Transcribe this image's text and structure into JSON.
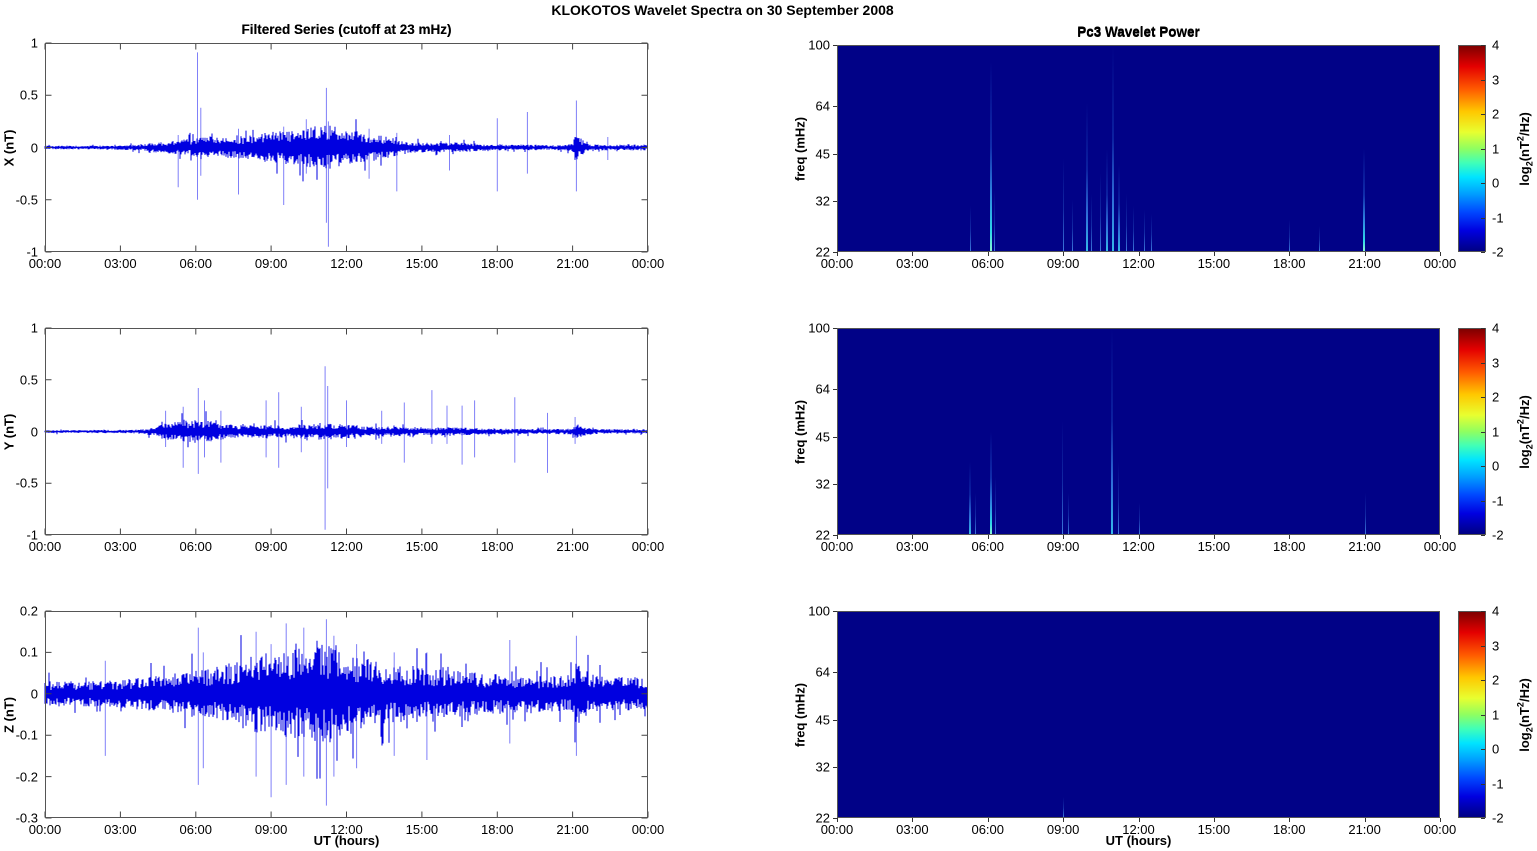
{
  "figure": {
    "title": "KLOKOTOS Wavelet Spectra on 30 September 2008",
    "background_color": "#FFFFFF"
  },
  "left_column": {
    "title": "Filtered Series (cutoff at 23 mHz)",
    "xlabel": "UT (hours)"
  },
  "right_column": {
    "title": "Pc3 Wavelet Power",
    "xlabel": "UT (hours)",
    "colorbar": {
      "ticks": [
        "4",
        "3",
        "2",
        "1",
        "0",
        "-1",
        "-2"
      ],
      "clim": [
        -2,
        4
      ],
      "label_prefix": "log",
      "label_sub": "2",
      "label_mid": "(nT",
      "label_sup": "2",
      "label_suffix": "/Hz)",
      "colormap": "jet",
      "jet_stops_top_to_bottom": [
        [
          0,
          "#7f0000"
        ],
        [
          0.1,
          "#e40000"
        ],
        [
          0.21,
          "#ff5a00"
        ],
        [
          0.32,
          "#ffc800"
        ],
        [
          0.42,
          "#e8ff30"
        ],
        [
          0.5,
          "#90ff60"
        ],
        [
          0.57,
          "#40ffb8"
        ],
        [
          0.64,
          "#00e4ff"
        ],
        [
          0.72,
          "#00a0ff"
        ],
        [
          0.81,
          "#0048ff"
        ],
        [
          0.9,
          "#0000e0"
        ],
        [
          1,
          "#000084"
        ]
      ]
    }
  },
  "colors": {
    "series_blue": "#0000E0",
    "spike_blue": "#8080F8",
    "heatmap_background": "#010287",
    "axis_line": "#555555"
  },
  "x_axis": {
    "tick_labels": [
      "00:00",
      "03:00",
      "06:00",
      "09:00",
      "12:00",
      "15:00",
      "18:00",
      "21:00",
      "00:00"
    ],
    "tick_hours": [
      0,
      3,
      6,
      9,
      12,
      15,
      18,
      21,
      24
    ],
    "range_hours": [
      0,
      24
    ]
  },
  "chart_data": [
    {
      "id": "ts-x",
      "type": "line",
      "component": "X",
      "title": "Filtered Series (cutoff at 23 mHz)",
      "ylabel": "X (nT)",
      "ylim": [
        -1,
        1
      ],
      "yticks": [
        "1",
        "0.5",
        "0",
        "-0.5",
        "-1"
      ],
      "x_unit": "UT hours",
      "grid": false,
      "envelope_hour_amp": [
        [
          0,
          0.018
        ],
        [
          2,
          0.018
        ],
        [
          3,
          0.022
        ],
        [
          4,
          0.035
        ],
        [
          4.5,
          0.05
        ],
        [
          5,
          0.06
        ],
        [
          5.5,
          0.075
        ],
        [
          6,
          0.09
        ],
        [
          6.5,
          0.1
        ],
        [
          7,
          0.095
        ],
        [
          7.5,
          0.1
        ],
        [
          8,
          0.115
        ],
        [
          8.5,
          0.13
        ],
        [
          9,
          0.15
        ],
        [
          9.5,
          0.16
        ],
        [
          10,
          0.175
        ],
        [
          10.5,
          0.19
        ],
        [
          11,
          0.21
        ],
        [
          11.3,
          0.22
        ],
        [
          11.7,
          0.19
        ],
        [
          12,
          0.18
        ],
        [
          12.5,
          0.16
        ],
        [
          13,
          0.13
        ],
        [
          13.5,
          0.11
        ],
        [
          14,
          0.08
        ],
        [
          14.5,
          0.055
        ],
        [
          15,
          0.05
        ],
        [
          15.5,
          0.042
        ],
        [
          16,
          0.05
        ],
        [
          16.5,
          0.048
        ],
        [
          17,
          0.04
        ],
        [
          17.5,
          0.032
        ],
        [
          18,
          0.03
        ],
        [
          18.5,
          0.028
        ],
        [
          19,
          0.028
        ],
        [
          19.5,
          0.026
        ],
        [
          20,
          0.024
        ],
        [
          20.5,
          0.026
        ],
        [
          21,
          0.035
        ],
        [
          21.1,
          0.13
        ],
        [
          21.3,
          0.1
        ],
        [
          21.5,
          0.045
        ],
        [
          22,
          0.03
        ],
        [
          22.5,
          0.028
        ],
        [
          23,
          0.028
        ],
        [
          24,
          0.028
        ]
      ],
      "spikes_hour_up_down": [
        [
          5.3,
          0.12,
          -0.38
        ],
        [
          6.07,
          0.91,
          -0.5
        ],
        [
          6.2,
          0.38,
          -0.27
        ],
        [
          7.7,
          0.18,
          -0.45
        ],
        [
          9.5,
          0.2,
          -0.55
        ],
        [
          10.4,
          0.27,
          -0.25
        ],
        [
          11.2,
          0.57,
          -0.72
        ],
        [
          11.28,
          0.25,
          -0.95
        ],
        [
          12.9,
          0.18,
          -0.3
        ],
        [
          14.0,
          0.14,
          -0.42
        ],
        [
          16.1,
          0.12,
          -0.22
        ],
        [
          18.0,
          0.28,
          -0.42
        ],
        [
          19.2,
          0.34,
          -0.25
        ],
        [
          21.15,
          0.45,
          -0.42
        ],
        [
          22.4,
          0.1,
          -0.12
        ]
      ]
    },
    {
      "id": "ts-y",
      "type": "line",
      "component": "Y",
      "ylabel": "Y (nT)",
      "ylim": [
        -1,
        1
      ],
      "yticks": [
        "1",
        "0.5",
        "0",
        "-0.5",
        "-1"
      ],
      "x_unit": "UT hours",
      "grid": false,
      "envelope_hour_amp": [
        [
          0,
          0.015
        ],
        [
          3,
          0.016
        ],
        [
          3.8,
          0.02
        ],
        [
          4.3,
          0.04
        ],
        [
          4.7,
          0.07
        ],
        [
          5,
          0.09
        ],
        [
          5.3,
          0.1
        ],
        [
          5.7,
          0.11
        ],
        [
          6,
          0.115
        ],
        [
          6.3,
          0.12
        ],
        [
          6.7,
          0.1
        ],
        [
          7,
          0.08
        ],
        [
          7.5,
          0.065
        ],
        [
          8,
          0.06
        ],
        [
          8.5,
          0.06
        ],
        [
          9,
          0.065
        ],
        [
          9.5,
          0.06
        ],
        [
          10,
          0.065
        ],
        [
          10.5,
          0.07
        ],
        [
          11,
          0.08
        ],
        [
          11.5,
          0.075
        ],
        [
          12,
          0.065
        ],
        [
          12.5,
          0.06
        ],
        [
          13,
          0.05
        ],
        [
          14,
          0.05
        ],
        [
          15,
          0.04
        ],
        [
          16,
          0.04
        ],
        [
          17,
          0.035
        ],
        [
          18,
          0.03
        ],
        [
          19,
          0.026
        ],
        [
          20,
          0.024
        ],
        [
          21,
          0.03
        ],
        [
          21.15,
          0.08
        ],
        [
          21.4,
          0.05
        ],
        [
          21.7,
          0.03
        ],
        [
          22,
          0.024
        ],
        [
          23,
          0.022
        ],
        [
          24,
          0.022
        ]
      ],
      "spikes_hour_up_down": [
        [
          4.8,
          0.2,
          -0.15
        ],
        [
          5.5,
          0.24,
          -0.35
        ],
        [
          6.1,
          0.42,
          -0.41
        ],
        [
          6.35,
          0.3,
          -0.25
        ],
        [
          7.0,
          0.2,
          -0.3
        ],
        [
          8.8,
          0.3,
          -0.25
        ],
        [
          9.3,
          0.38,
          -0.35
        ],
        [
          10.2,
          0.24,
          -0.2
        ],
        [
          11.15,
          0.63,
          -0.95
        ],
        [
          11.25,
          0.44,
          -0.55
        ],
        [
          12.0,
          0.3,
          -0.15
        ],
        [
          13.4,
          0.2,
          -0.12
        ],
        [
          14.3,
          0.28,
          -0.3
        ],
        [
          15.4,
          0.4,
          -0.12
        ],
        [
          16.0,
          0.25,
          -0.12
        ],
        [
          16.6,
          0.25,
          -0.32
        ],
        [
          17.1,
          0.3,
          -0.25
        ],
        [
          18.7,
          0.33,
          -0.3
        ],
        [
          20.0,
          0.18,
          -0.4
        ],
        [
          21.1,
          0.14,
          -0.12
        ]
      ]
    },
    {
      "id": "ts-z",
      "type": "line",
      "component": "Z",
      "ylabel": "Z (nT)",
      "ylim": [
        -0.3,
        0.2
      ],
      "yticks": [
        "0.2",
        "0.1",
        "0",
        "-0.1",
        "-0.2",
        "-0.3"
      ],
      "x_unit": "UT hours",
      "grid": false,
      "envelope_hour_amp": [
        [
          0,
          0.03
        ],
        [
          1,
          0.03
        ],
        [
          2,
          0.031
        ],
        [
          3,
          0.034
        ],
        [
          4,
          0.04
        ],
        [
          5,
          0.05
        ],
        [
          6,
          0.058
        ],
        [
          6.5,
          0.062
        ],
        [
          7,
          0.068
        ],
        [
          7.5,
          0.078
        ],
        [
          8,
          0.088
        ],
        [
          8.5,
          0.095
        ],
        [
          9,
          0.1
        ],
        [
          9.5,
          0.105
        ],
        [
          10,
          0.108
        ],
        [
          10.5,
          0.115
        ],
        [
          11,
          0.118
        ],
        [
          11.3,
          0.12
        ],
        [
          11.7,
          0.11
        ],
        [
          12,
          0.1
        ],
        [
          12.5,
          0.092
        ],
        [
          13,
          0.082
        ],
        [
          13.5,
          0.072
        ],
        [
          14,
          0.07
        ],
        [
          14.5,
          0.065
        ],
        [
          15,
          0.06
        ],
        [
          16,
          0.058
        ],
        [
          17,
          0.052
        ],
        [
          18,
          0.05
        ],
        [
          19,
          0.046
        ],
        [
          20,
          0.042
        ],
        [
          21,
          0.046
        ],
        [
          21.15,
          0.08
        ],
        [
          21.4,
          0.06
        ],
        [
          22,
          0.042
        ],
        [
          23,
          0.04
        ],
        [
          24,
          0.04
        ]
      ],
      "spikes_hour_up_down": [
        [
          2.4,
          0.08,
          -0.15
        ],
        [
          6.1,
          0.16,
          -0.22
        ],
        [
          6.3,
          0.1,
          -0.18
        ],
        [
          8.4,
          0.15,
          -0.2
        ],
        [
          9.0,
          0.12,
          -0.25
        ],
        [
          9.6,
          0.17,
          -0.22
        ],
        [
          10.3,
          0.16,
          -0.2
        ],
        [
          11.2,
          0.18,
          -0.27
        ],
        [
          11.5,
          0.14,
          -0.2
        ],
        [
          12.4,
          0.12,
          -0.18
        ],
        [
          13.9,
          0.1,
          -0.15
        ],
        [
          15.2,
          0.1,
          -0.16
        ],
        [
          18.5,
          0.13,
          -0.12
        ],
        [
          21.15,
          0.14,
          -0.15
        ]
      ]
    },
    {
      "id": "sp-x",
      "type": "heatmap",
      "component": "X",
      "title": "Pc3 Wavelet Power",
      "ylabel": "freq (mHz)",
      "y_scale": "log",
      "ylim_mHz": [
        22,
        100
      ],
      "yticks": [
        "100",
        "64",
        "45",
        "32",
        "22"
      ],
      "clim_log2": [
        -2,
        4
      ],
      "background_value_log2": -2,
      "events_hour_extent_intensity": [
        [
          5.3,
          0.22,
          "faint"
        ],
        [
          6.08,
          0.92,
          "strong"
        ],
        [
          6.25,
          0.3,
          "faint"
        ],
        [
          9.0,
          0.45,
          "faint"
        ],
        [
          9.35,
          0.25,
          "faint"
        ],
        [
          9.9,
          0.72,
          "medium"
        ],
        [
          10.1,
          0.28,
          "faint"
        ],
        [
          10.45,
          0.38,
          "faint"
        ],
        [
          10.7,
          0.5,
          "medium"
        ],
        [
          10.95,
          1.0,
          "medium"
        ],
        [
          11.2,
          0.42,
          "medium"
        ],
        [
          11.5,
          0.28,
          "faint"
        ],
        [
          11.8,
          0.22,
          "faint"
        ],
        [
          12.2,
          0.2,
          "faint"
        ],
        [
          12.5,
          0.18,
          "faint"
        ],
        [
          18.0,
          0.15,
          "faint"
        ],
        [
          19.2,
          0.12,
          "faint"
        ],
        [
          20.92,
          0.5,
          "strong"
        ]
      ]
    },
    {
      "id": "sp-y",
      "type": "heatmap",
      "component": "Y",
      "ylabel": "freq (mHz)",
      "y_scale": "log",
      "ylim_mHz": [
        22,
        100
      ],
      "yticks": [
        "100",
        "64",
        "45",
        "32",
        "22"
      ],
      "clim_log2": [
        -2,
        4
      ],
      "background_value_log2": -2,
      "events_hour_extent_intensity": [
        [
          5.25,
          0.35,
          "medium"
        ],
        [
          5.5,
          0.2,
          "faint"
        ],
        [
          6.1,
          0.5,
          "strong"
        ],
        [
          6.3,
          0.28,
          "faint"
        ],
        [
          8.95,
          0.55,
          "faint"
        ],
        [
          9.2,
          0.2,
          "faint"
        ],
        [
          10.9,
          1.0,
          "medium"
        ],
        [
          11.2,
          0.35,
          "faint"
        ],
        [
          12.0,
          0.15,
          "faint"
        ],
        [
          21.0,
          0.2,
          "faint"
        ]
      ]
    },
    {
      "id": "sp-z",
      "type": "heatmap",
      "component": "Z",
      "ylabel": "freq (mHz)",
      "y_scale": "log",
      "ylim_mHz": [
        22,
        100
      ],
      "yticks": [
        "100",
        "64",
        "45",
        "32",
        "22"
      ],
      "clim_log2": [
        -2,
        4
      ],
      "background_value_log2": -2,
      "events_hour_extent_intensity": [
        [
          9.0,
          0.1,
          "faint"
        ]
      ]
    }
  ]
}
